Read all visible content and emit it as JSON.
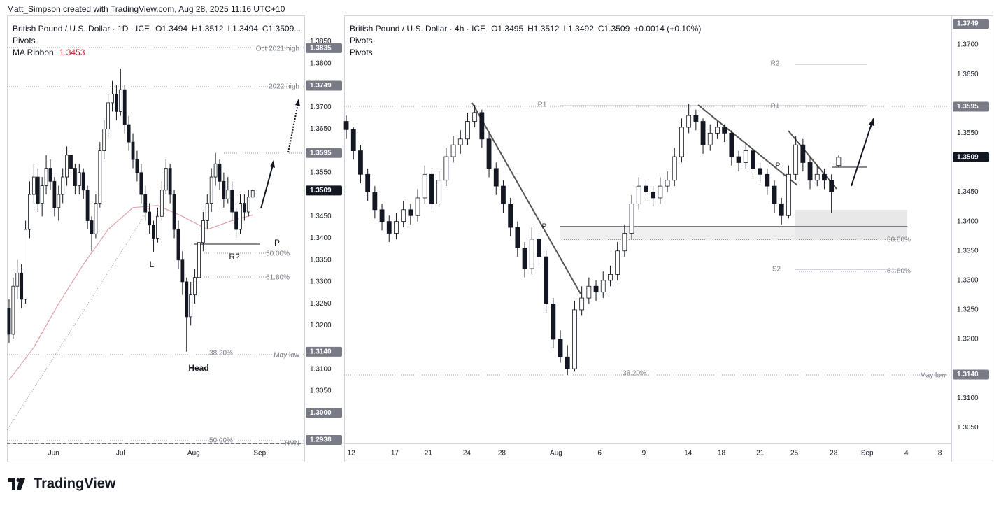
{
  "header": {
    "text": "Matt_Simpson created with TradingView.com, Aug 28, 2025 11:16 UTC+10"
  },
  "footer": {
    "logo": "TradingView"
  },
  "chart_data": [
    {
      "type": "candlestick",
      "title": "British Pound / U.S. Dollar · 1D · ICE",
      "legend": [
        "O1.3494",
        "H1.3512",
        "L1.3494",
        "C1.3509..."
      ],
      "indicators": [
        "Pivots"
      ],
      "colors": {
        "up": "#ffffff",
        "down": "#131722",
        "wick": "#131722"
      },
      "xlim": [
        -0.5,
        71.5
      ],
      "xticks": [
        {
          "value": 10.8,
          "label": "Jun"
        },
        {
          "value": 27,
          "label": "Jul"
        },
        {
          "value": 44.7,
          "label": "Aug"
        },
        {
          "value": 60.7,
          "label": "Sep"
        }
      ],
      "ylim": [
        1.293,
        1.391
      ],
      "yticks": [
        {
          "value": 1.385,
          "label": "1.3850"
        },
        {
          "value": 1.38,
          "label": "1.3800"
        },
        {
          "value": 1.37,
          "label": "1.3700"
        },
        {
          "value": 1.365,
          "label": "1.3650"
        },
        {
          "value": 1.355,
          "label": "1.3550"
        },
        {
          "value": 1.345,
          "label": "1.3450"
        },
        {
          "value": 1.34,
          "label": "1.3400"
        },
        {
          "value": 1.335,
          "label": "1.3350"
        },
        {
          "value": 1.33,
          "label": "1.3300"
        },
        {
          "value": 1.325,
          "label": "1.3250"
        },
        {
          "value": 1.32,
          "label": "1.3200"
        },
        {
          "value": 1.31,
          "label": "1.3100"
        },
        {
          "value": 1.305,
          "label": "1.3050"
        }
      ],
      "grid": false,
      "price_labels": [
        1.3835,
        1.3749,
        1.3595,
        {
          "value": 1.314,
          "label": "1.3140"
        },
        {
          "value": 1.3,
          "label": "1.3000"
        },
        1.2938
      ],
      "current_price": 1.3509,
      "ma": {
        "name": "MA Ribbon",
        "last": 1.3453,
        "color": "#e3a3a8",
        "x": [
          0,
          6,
          12,
          18,
          24,
          30,
          36,
          42,
          48,
          54,
          59
        ],
        "values": [
          1.3075,
          1.315,
          1.325,
          1.334,
          1.342,
          1.347,
          1.3475,
          1.345,
          1.342,
          1.344,
          1.3453
        ]
      },
      "annotations": [
        "Oct 2021 high",
        "2022 high",
        "May low",
        "50.00%",
        "61.80%",
        "38.20%",
        "50.00%",
        "HVN",
        "P",
        "R?",
        "L",
        "Head"
      ],
      "ohlc": [
        [
          1.324,
          1.326,
          1.316,
          1.318
        ],
        [
          1.318,
          1.331,
          1.317,
          1.329
        ],
        [
          1.329,
          1.335,
          1.326,
          1.332
        ],
        [
          1.332,
          1.334,
          1.324,
          1.326
        ],
        [
          1.326,
          1.344,
          1.325,
          1.342
        ],
        [
          1.342,
          1.353,
          1.34,
          1.35
        ],
        [
          1.35,
          1.357,
          1.348,
          1.354
        ],
        [
          1.354,
          1.356,
          1.346,
          1.348
        ],
        [
          1.348,
          1.354,
          1.345,
          1.352
        ],
        [
          1.352,
          1.359,
          1.35,
          1.356
        ],
        [
          1.356,
          1.358,
          1.351,
          1.353
        ],
        [
          1.353,
          1.354,
          1.345,
          1.347
        ],
        [
          1.347,
          1.352,
          1.344,
          1.35
        ],
        [
          1.35,
          1.356,
          1.348,
          1.354
        ],
        [
          1.354,
          1.361,
          1.352,
          1.359
        ],
        [
          1.359,
          1.36,
          1.354,
          1.356
        ],
        [
          1.356,
          1.357,
          1.35,
          1.352
        ],
        [
          1.352,
          1.357,
          1.35,
          1.355
        ],
        [
          1.355,
          1.356,
          1.349,
          1.351
        ],
        [
          1.351,
          1.352,
          1.342,
          1.344
        ],
        [
          1.344,
          1.345,
          1.337,
          1.341
        ],
        [
          1.341,
          1.35,
          1.34,
          1.348
        ],
        [
          1.348,
          1.362,
          1.347,
          1.36
        ],
        [
          1.36,
          1.367,
          1.358,
          1.365
        ],
        [
          1.365,
          1.373,
          1.363,
          1.371
        ],
        [
          1.371,
          1.376,
          1.369,
          1.373
        ],
        [
          1.373,
          1.375,
          1.367,
          1.369
        ],
        [
          1.369,
          1.3788,
          1.368,
          1.374
        ],
        [
          1.374,
          1.375,
          1.364,
          1.366
        ],
        [
          1.366,
          1.368,
          1.36,
          1.362
        ],
        [
          1.362,
          1.364,
          1.356,
          1.358
        ],
        [
          1.358,
          1.36,
          1.353,
          1.355
        ],
        [
          1.355,
          1.357,
          1.348,
          1.35
        ],
        [
          1.35,
          1.352,
          1.344,
          1.346
        ],
        [
          1.346,
          1.348,
          1.341,
          1.343
        ],
        [
          1.343,
          1.344,
          1.3369,
          1.34
        ],
        [
          1.34,
          1.347,
          1.339,
          1.345
        ],
        [
          1.345,
          1.353,
          1.344,
          1.351
        ],
        [
          1.351,
          1.358,
          1.35,
          1.356
        ],
        [
          1.356,
          1.357,
          1.348,
          1.35
        ],
        [
          1.35,
          1.351,
          1.34,
          1.342
        ],
        [
          1.342,
          1.344,
          1.333,
          1.335
        ],
        [
          1.335,
          1.337,
          1.327,
          1.33
        ],
        [
          1.33,
          1.331,
          1.314,
          1.322
        ],
        [
          1.322,
          1.33,
          1.32,
          1.327
        ],
        [
          1.327,
          1.333,
          1.325,
          1.331
        ],
        [
          1.331,
          1.341,
          1.33,
          1.339
        ],
        [
          1.339,
          1.346,
          1.337,
          1.344
        ],
        [
          1.344,
          1.35,
          1.342,
          1.348
        ],
        [
          1.348,
          1.356,
          1.346,
          1.354
        ],
        [
          1.354,
          1.3595,
          1.352,
          1.357
        ],
        [
          1.357,
          1.358,
          1.351,
          1.353
        ],
        [
          1.353,
          1.355,
          1.347,
          1.349
        ],
        [
          1.349,
          1.354,
          1.348,
          1.351
        ],
        [
          1.351,
          1.353,
          1.344,
          1.346
        ],
        [
          1.346,
          1.347,
          1.3401,
          1.342
        ],
        [
          1.342,
          1.35,
          1.341,
          1.348
        ],
        [
          1.348,
          1.35,
          1.344,
          1.346
        ],
        [
          1.346,
          1.351,
          1.345,
          1.3494
        ],
        [
          1.3494,
          1.3512,
          1.3494,
          1.3509
        ]
      ]
    },
    {
      "type": "candlestick",
      "title": "British Pound / U.S. Dollar · 4h · ICE",
      "legend": [
        "O1.3495",
        "H1.3512",
        "L1.3492",
        "C1.3509"
      ],
      "change": "+0.0014 (+0.10%)",
      "indicators": [
        "Pivots",
        "Pivots"
      ],
      "colors": {
        "up": "#ffffff",
        "down": "#131722",
        "wick": "#131722"
      },
      "xlim": [
        -0.3,
        84.8
      ],
      "xticks": [
        {
          "value": 0.7,
          "label": "12"
        },
        {
          "value": 6.8,
          "label": "17"
        },
        {
          "value": 11.5,
          "label": "21"
        },
        {
          "value": 16.9,
          "label": "24"
        },
        {
          "value": 21.8,
          "label": "28"
        },
        {
          "value": 29.4,
          "label": "Aug"
        },
        {
          "value": 35.5,
          "label": "6"
        },
        {
          "value": 41.7,
          "label": "9"
        },
        {
          "value": 47.9,
          "label": "14"
        },
        {
          "value": 52.6,
          "label": "18"
        },
        {
          "value": 58,
          "label": "21"
        },
        {
          "value": 62.8,
          "label": "25"
        },
        {
          "value": 68.3,
          "label": "28"
        },
        {
          "value": 73,
          "label": "Sep"
        },
        {
          "value": 78.5,
          "label": "4"
        },
        {
          "value": 83.2,
          "label": "8"
        }
      ],
      "ylim": [
        1.3023,
        1.375
      ],
      "yticks": [
        {
          "value": 1.37,
          "label": "1.3700"
        },
        {
          "value": 1.365,
          "label": "1.3650"
        },
        {
          "value": 1.355,
          "label": "1.3550"
        },
        {
          "value": 1.345,
          "label": "1.3450"
        },
        {
          "value": 1.34,
          "label": "1.3400"
        },
        {
          "value": 1.335,
          "label": "1.3350"
        },
        {
          "value": 1.33,
          "label": "1.3300"
        },
        {
          "value": 1.325,
          "label": "1.3250"
        },
        {
          "value": 1.32,
          "label": "1.3200"
        },
        {
          "value": 1.31,
          "label": "1.3100"
        },
        {
          "value": 1.305,
          "label": "1.3050"
        }
      ],
      "grid": false,
      "price_labels": [
        1.3749,
        1.3595,
        {
          "value": 1.314,
          "label": "1.3140"
        }
      ],
      "current_price": 1.3509,
      "annotations": [
        "R1",
        "R1",
        "R2",
        "P",
        "P",
        "S2",
        "50.00%",
        "61.80%",
        "38.20%",
        "May low"
      ],
      "ohlc": [
        [
          1.357,
          1.358,
          1.354,
          1.3556
        ],
        [
          1.3556,
          1.356,
          1.3505,
          1.352
        ],
        [
          1.352,
          1.353,
          1.3465,
          1.348
        ],
        [
          1.348,
          1.349,
          1.3435,
          1.345
        ],
        [
          1.345,
          1.346,
          1.3405,
          1.342
        ],
        [
          1.342,
          1.343,
          1.3385,
          1.34
        ],
        [
          1.34,
          1.341,
          1.3365,
          1.338
        ],
        [
          1.338,
          1.3415,
          1.337,
          1.34
        ],
        [
          1.34,
          1.3435,
          1.339,
          1.342
        ],
        [
          1.342,
          1.343,
          1.3395,
          1.341
        ],
        [
          1.341,
          1.3455,
          1.34,
          1.344
        ],
        [
          1.344,
          1.3495,
          1.343,
          1.348
        ],
        [
          1.348,
          1.3485,
          1.342,
          1.343
        ],
        [
          1.343,
          1.3485,
          1.3425,
          1.347
        ],
        [
          1.347,
          1.3525,
          1.346,
          1.351
        ],
        [
          1.351,
          1.3545,
          1.35,
          1.353
        ],
        [
          1.353,
          1.3555,
          1.3515,
          1.354
        ],
        [
          1.354,
          1.3585,
          1.353,
          1.357
        ],
        [
          1.357,
          1.3598,
          1.356,
          1.3585
        ],
        [
          1.3585,
          1.359,
          1.3525,
          1.354
        ],
        [
          1.354,
          1.355,
          1.3475,
          1.349
        ],
        [
          1.349,
          1.35,
          1.3445,
          1.346
        ],
        [
          1.346,
          1.347,
          1.3415,
          1.343
        ],
        [
          1.343,
          1.344,
          1.3375,
          1.339
        ],
        [
          1.339,
          1.34,
          1.334,
          1.3355
        ],
        [
          1.3355,
          1.3365,
          1.3305,
          1.332
        ],
        [
          1.332,
          1.339,
          1.331,
          1.337
        ],
        [
          1.337,
          1.338,
          1.3325,
          1.334
        ],
        [
          1.334,
          1.335,
          1.3245,
          1.326
        ],
        [
          1.326,
          1.327,
          1.3185,
          1.32
        ],
        [
          1.32,
          1.3215,
          1.316,
          1.317
        ],
        [
          1.317,
          1.319,
          1.3139,
          1.315
        ],
        [
          1.315,
          1.3265,
          1.3145,
          1.325
        ],
        [
          1.325,
          1.329,
          1.324,
          1.327
        ],
        [
          1.327,
          1.3305,
          1.326,
          1.329
        ],
        [
          1.329,
          1.33,
          1.3265,
          1.328
        ],
        [
          1.328,
          1.3315,
          1.327,
          1.33
        ],
        [
          1.33,
          1.3325,
          1.329,
          1.331
        ],
        [
          1.331,
          1.3365,
          1.33,
          1.335
        ],
        [
          1.335,
          1.3395,
          1.334,
          1.338
        ],
        [
          1.338,
          1.3445,
          1.337,
          1.343
        ],
        [
          1.343,
          1.3475,
          1.342,
          1.346
        ],
        [
          1.346,
          1.347,
          1.3435,
          1.345
        ],
        [
          1.345,
          1.346,
          1.3425,
          1.344
        ],
        [
          1.344,
          1.3475,
          1.343,
          1.346
        ],
        [
          1.346,
          1.3485,
          1.345,
          1.347
        ],
        [
          1.347,
          1.3525,
          1.346,
          1.351
        ],
        [
          1.351,
          1.3575,
          1.35,
          1.356
        ],
        [
          1.356,
          1.36,
          1.355,
          1.358
        ],
        [
          1.358,
          1.359,
          1.3555,
          1.357
        ],
        [
          1.357,
          1.3575,
          1.3515,
          1.353
        ],
        [
          1.353,
          1.3565,
          1.352,
          1.355
        ],
        [
          1.355,
          1.357,
          1.354,
          1.356
        ],
        [
          1.356,
          1.3565,
          1.3535,
          1.355
        ],
        [
          1.355,
          1.3555,
          1.3495,
          1.351
        ],
        [
          1.351,
          1.352,
          1.3485,
          1.35
        ],
        [
          1.35,
          1.3535,
          1.349,
          1.352
        ],
        [
          1.352,
          1.3525,
          1.3475,
          1.349
        ],
        [
          1.349,
          1.35,
          1.3465,
          1.348
        ],
        [
          1.348,
          1.349,
          1.3445,
          1.346
        ],
        [
          1.346,
          1.347,
          1.3415,
          1.343
        ],
        [
          1.343,
          1.344,
          1.3395,
          1.341
        ],
        [
          1.341,
          1.3495,
          1.3405,
          1.348
        ],
        [
          1.348,
          1.3545,
          1.347,
          1.353
        ],
        [
          1.353,
          1.354,
          1.3485,
          1.35
        ],
        [
          1.35,
          1.351,
          1.3455,
          1.347
        ],
        [
          1.347,
          1.3495,
          1.346,
          1.348
        ],
        [
          1.348,
          1.349,
          1.3455,
          1.347
        ],
        [
          1.347,
          1.348,
          1.3415,
          1.345
        ],
        [
          1.3495,
          1.3512,
          1.3492,
          1.3509
        ]
      ]
    }
  ]
}
